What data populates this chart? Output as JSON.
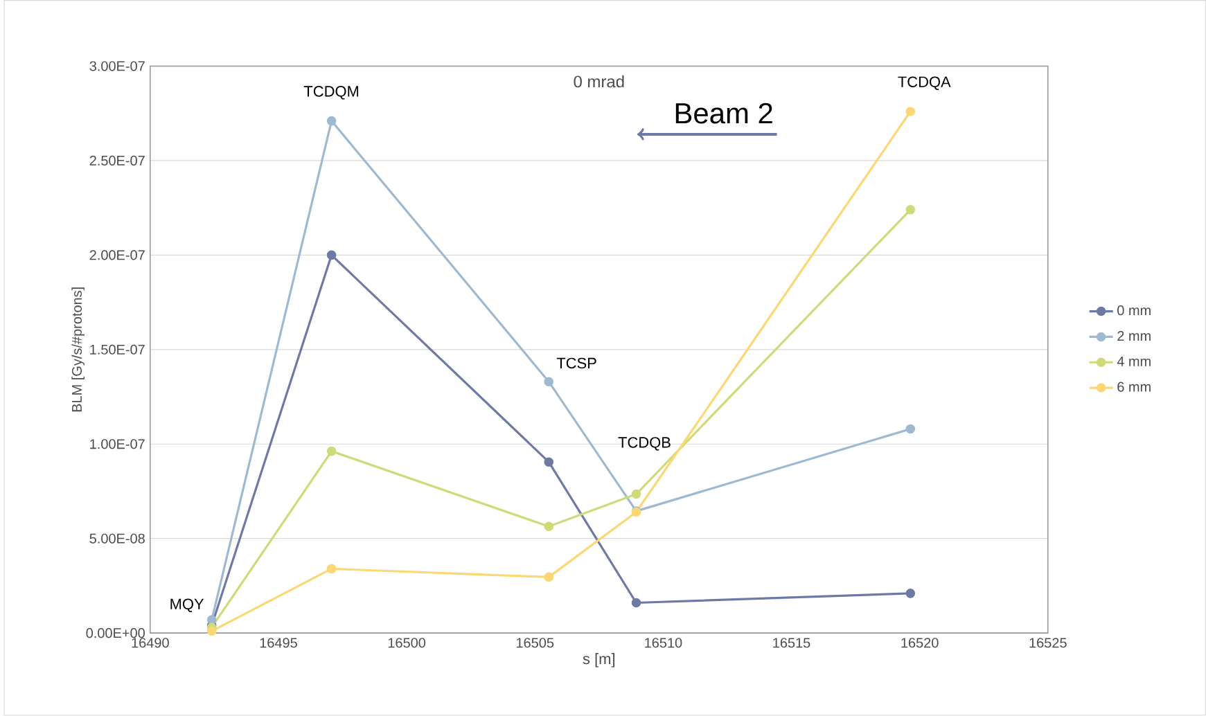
{
  "chart_data": {
    "type": "line",
    "title": "0 mrad",
    "xlabel": "s [m]",
    "ylabel": "BLM [Gy/s/#protons]",
    "x": [
      16492.4,
      16497.07,
      16505.54,
      16508.95,
      16519.64
    ],
    "series": [
      {
        "name": "0 mm",
        "color": "#6e7aa3",
        "values": [
          4e-09,
          2e-07,
          9.05e-08,
          1.6e-08,
          2.1e-08
        ]
      },
      {
        "name": "2 mm",
        "color": "#9fbad0",
        "values": [
          7e-09,
          2.71e-07,
          1.33e-07,
          6.45e-08,
          1.08e-07
        ]
      },
      {
        "name": "4 mm",
        "color": "#cfdb78",
        "values": [
          3e-09,
          9.62e-08,
          5.64e-08,
          7.35e-08,
          2.24e-07
        ]
      },
      {
        "name": "6 mm",
        "color": "#fbd775",
        "values": [
          1e-09,
          3.4e-08,
          2.96e-08,
          6.4e-08,
          2.76e-07
        ]
      }
    ],
    "xlim": [
      16490,
      16525
    ],
    "xticks": [
      16490,
      16495,
      16500,
      16505,
      16510,
      16515,
      16520,
      16525
    ],
    "ylim": [
      0,
      3e-07
    ],
    "yticks": [
      {
        "value": 0,
        "label": "0.00E+00"
      },
      {
        "value": 5e-08,
        "label": "5.00E-08"
      },
      {
        "value": 1e-07,
        "label": "1.00E-07"
      },
      {
        "value": 1.5e-07,
        "label": "1.50E-07"
      },
      {
        "value": 2e-07,
        "label": "2.00E-07"
      },
      {
        "value": 2.5e-07,
        "label": "2.50E-07"
      },
      {
        "value": 3e-07,
        "label": "3.00E-07"
      }
    ],
    "annotations": [
      {
        "text": "MQY",
        "x": 16492.4,
        "y": 7e-09
      },
      {
        "text": "TCDQM",
        "x": 16497.07,
        "y": 2.71e-07
      },
      {
        "text": "TCSP",
        "x": 16505.54,
        "y": 1.33e-07
      },
      {
        "text": "TCDQB",
        "x": 16508.95,
        "y": 7.35e-08
      },
      {
        "text": "TCDQA",
        "x": 16519.64,
        "y": 2.76e-07
      },
      "Beam 2"
    ],
    "grid": "y",
    "legend": "right",
    "marker": "circle",
    "line_style": "solid"
  }
}
